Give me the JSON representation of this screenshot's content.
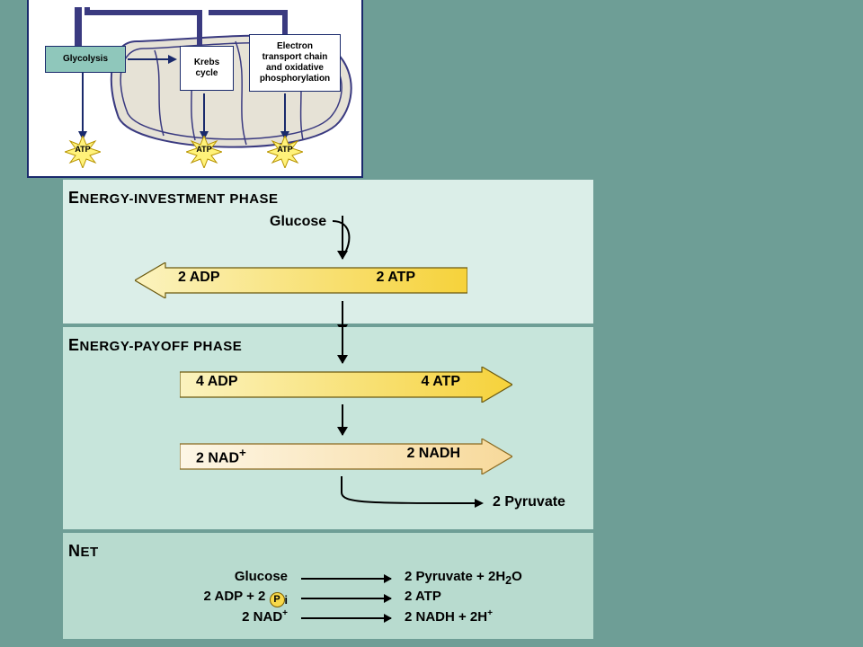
{
  "colors": {
    "page_bg": "#6e9e96",
    "panel_green_light": "#dbeee8",
    "panel_green_mid": "#c7e5db",
    "panel_green_net": "#b8dbcf",
    "arrow_yellow_dark": "#f6d23a",
    "arrow_yellow_light": "#fbf3bf",
    "arrow_orange_light": "#fce7c2",
    "arrow_outline": "#6b5a10",
    "overview_border": "#1a2a6c",
    "glycolysis_box": "#8fc7bb",
    "mito_fill": "#e6e2d6",
    "mito_stroke": "#3a3a80"
  },
  "overview": {
    "glycolysis": "Glycolysis",
    "krebs": "Krebs\ncycle",
    "etc": "Electron\ntransport chain\nand oxidative\nphosphorylation",
    "atp": "ATP"
  },
  "phase1": {
    "title_first": "E",
    "title_rest": "NERGY-INVESTMENT PHASE",
    "input": "Glucose",
    "arrow_left": "2 ADP",
    "arrow_right": "2 ATP"
  },
  "phase2": {
    "title_first": "E",
    "title_rest": "NERGY-PAYOFF PHASE",
    "arrow1_left": "4 ADP",
    "arrow1_right": "4 ATP",
    "arrow2_left_pre": "2 NAD",
    "arrow2_left_sup": "+",
    "arrow2_right": "2 NADH",
    "output": "2 Pyruvate"
  },
  "net": {
    "title_first": "N",
    "title_rest": "ET",
    "rows": [
      {
        "left": "Glucose",
        "right_html": "2 Pyruvate + 2H<sub>2</sub>O"
      },
      {
        "left_html": "2 ADP + 2 <span class='pi-circle'>P</span><sub>i</sub>",
        "right": "2 ATP"
      },
      {
        "left_html": "2 NAD<sup>+</sup>",
        "right_html": "2 NADH + 2H<sup>+</sup>"
      }
    ]
  }
}
